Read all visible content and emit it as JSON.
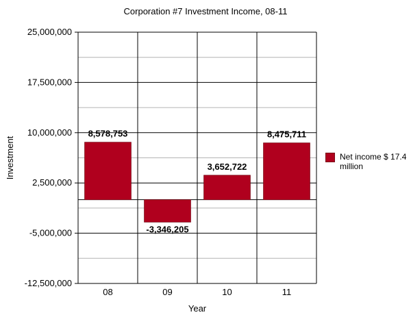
{
  "chart_data": {
    "type": "bar",
    "title": "Corporation #7 Investment Income, 08-11",
    "xlabel": "Year",
    "ylabel": "Investment",
    "categories": [
      "08",
      "09",
      "10",
      "11"
    ],
    "values": [
      8578753,
      -3346205,
      3652722,
      8475711
    ],
    "value_labels": [
      "8,578,753",
      "-3,346,205",
      "3,652,722",
      "8,475,711"
    ],
    "ylim": [
      -12500000,
      25000000
    ],
    "y_ticks": [
      25000000,
      17500000,
      10000000,
      2500000,
      -5000000,
      -12500000
    ],
    "y_tick_labels": [
      "25,000,000",
      "17,500,000",
      "10,000,000",
      "2,500,000",
      "-5,000,000",
      "-12,500,000"
    ],
    "grid": true,
    "legend": {
      "position": "right",
      "entries": [
        {
          "label": "Net income $ 17.4 million",
          "color": "#b0001e"
        }
      ]
    },
    "bar_color": "#b0001e"
  }
}
